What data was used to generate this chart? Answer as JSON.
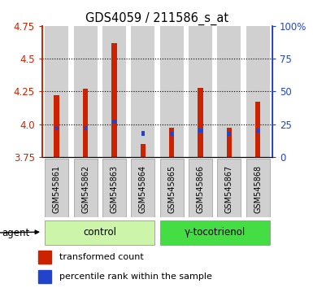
{
  "title": "GDS4059 / 211586_s_at",
  "samples": [
    "GSM545861",
    "GSM545862",
    "GSM545863",
    "GSM545864",
    "GSM545865",
    "GSM545866",
    "GSM545867",
    "GSM545868"
  ],
  "red_top": [
    4.22,
    4.27,
    4.62,
    3.85,
    3.97,
    4.28,
    3.97,
    4.17
  ],
  "blue_y": [
    3.97,
    3.97,
    4.02,
    3.93,
    3.925,
    3.95,
    3.925,
    3.95
  ],
  "baseline": 3.75,
  "ylim_left": [
    3.75,
    4.75
  ],
  "ylim_right": [
    0,
    100
  ],
  "yticks_left": [
    3.75,
    4.0,
    4.25,
    4.5,
    4.75
  ],
  "yticks_right": [
    0,
    25,
    50,
    75,
    100
  ],
  "ytick_labels_right": [
    "0",
    "25",
    "50",
    "75",
    "100%"
  ],
  "groups": [
    {
      "label": "control",
      "indices": [
        0,
        1,
        2,
        3
      ],
      "color": "#ccf5aa"
    },
    {
      "label": "γ-tocotrienol",
      "indices": [
        4,
        5,
        6,
        7
      ],
      "color": "#44dd44"
    }
  ],
  "agent_label": "agent",
  "red_color": "#cc2200",
  "blue_color": "#2244cc",
  "bar_bg_color": "#d0d0d0",
  "legend_items": [
    {
      "color": "#cc2200",
      "label": "transformed count"
    },
    {
      "color": "#2244cc",
      "label": "percentile rank within the sample"
    }
  ]
}
